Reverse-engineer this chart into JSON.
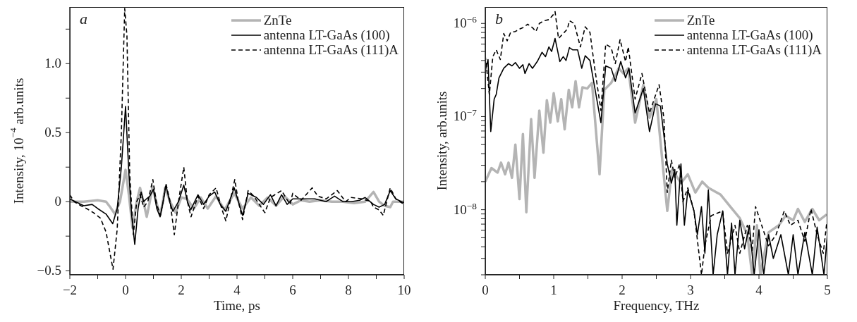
{
  "chart_data": [
    {
      "type": "line",
      "xlabel": "Time, ps",
      "ylabel": "Intensity, 10$^{−4}$ arb.units",
      "annotations": [
        "a"
      ],
      "legend": "top right",
      "xlim": [
        -2,
        10
      ],
      "xticks": [
        {
          "value": -2,
          "label": "−2"
        },
        {
          "value": -1,
          "label": null
        },
        0,
        {
          "value": 1,
          "label": null
        },
        2,
        {
          "value": 3,
          "label": null
        },
        4,
        {
          "value": 5,
          "label": null
        },
        6,
        {
          "value": 7,
          "label": null
        },
        8,
        {
          "value": 9,
          "label": null
        },
        10
      ],
      "ylim": [
        -0.53,
        1.41
      ],
      "yticks": [
        {
          "value": -0.5,
          "label": "−0.5"
        },
        {
          "value": -0.25,
          "label": null
        },
        0,
        {
          "value": 0.25,
          "label": null
        },
        0.5,
        {
          "value": 0.75,
          "label": null
        },
        {
          "value": 1,
          "label": "1.0"
        },
        {
          "value": 1.25,
          "label": null
        }
      ],
      "series": [
        {
          "name": "ZnTe",
          "color": "#b4b4b4",
          "line_style": "solid",
          "x": [
            -2,
            -1.5,
            -1,
            -0.7,
            -0.55,
            -0.38,
            -0.2,
            0,
            0.12,
            0.25,
            0.4,
            0.52,
            0.64,
            0.76,
            0.87,
            0.97,
            1.1,
            1.24,
            1.34,
            1.42,
            1.6,
            1.8,
            2,
            2.2,
            2.45,
            2.7,
            2.95,
            3.25,
            3.55,
            3.9,
            4.2,
            4.5,
            4.8,
            5.1,
            5.4,
            5.7,
            6,
            6.3,
            6.6,
            7,
            7.4,
            7.8,
            8.2,
            8.6,
            8.9,
            9.1,
            9.3,
            9.5,
            9.6,
            10
          ],
          "values": [
            0,
            0,
            0.01,
            0,
            -0.04,
            -0.09,
            0,
            0.23,
            0.05,
            -0.19,
            0,
            0.1,
            0,
            -0.11,
            0,
            0.11,
            0,
            -0.1,
            0,
            0.1,
            0,
            -0.08,
            0.03,
            0.02,
            -0.05,
            0.03,
            -0.05,
            0.04,
            -0.06,
            0.06,
            -0.05,
            0.03,
            -0.03,
            0.03,
            -0.03,
            0.04,
            -0.02,
            0.01,
            0,
            0.01,
            0,
            0,
            -0.01,
            0,
            0.07,
            0,
            -0.03,
            -0.04,
            0,
            0
          ]
        },
        {
          "name": "antenna LT-GaAs (100)",
          "color": "#000000",
          "line_style": "solid",
          "x": [
            -2,
            -1.8,
            -1.5,
            -1.2,
            -1,
            -0.7,
            -0.46,
            -0.3,
            -0.15,
            0,
            0.12,
            0.22,
            0.33,
            0.45,
            0.56,
            0.65,
            0.75,
            0.87,
            1,
            1.12,
            1.24,
            1.35,
            1.45,
            1.58,
            1.7,
            1.9,
            2.09,
            2.22,
            2.34,
            2.6,
            2.8,
            3,
            3.2,
            3.4,
            3.6,
            3.9,
            4.05,
            4.2,
            4.4,
            4.7,
            4.95,
            5.2,
            5.4,
            5.6,
            5.8,
            6,
            6.4,
            6.8,
            7.2,
            7.5,
            7.8,
            8.1,
            8.4,
            8.6,
            8.9,
            9.1,
            9.3,
            9.5,
            9.7,
            10
          ],
          "values": [
            0.02,
            0,
            -0.03,
            -0.02,
            -0.05,
            -0.09,
            -0.16,
            -0.05,
            0.25,
            0.69,
            0.2,
            -0.1,
            -0.31,
            -0.05,
            0.07,
            0,
            0.02,
            0.04,
            0.09,
            -0.05,
            -0.11,
            0,
            0.12,
            0,
            -0.07,
            0,
            0.12,
            0,
            -0.06,
            0.05,
            -0.02,
            0.04,
            0.07,
            -0.02,
            -0.07,
            0.1,
            0,
            -0.1,
            0.06,
            0.03,
            -0.02,
            0.05,
            -0.03,
            0.05,
            -0.02,
            0.02,
            0.02,
            0.02,
            0,
            0.04,
            0,
            0,
            0.01,
            0.03,
            -0.02,
            -0.04,
            -0.02,
            0.08,
            0.02,
            -0.01
          ]
        },
        {
          "name": "antenna LT-GaAs (111)A",
          "color": "#000000",
          "line_style": "dashed",
          "x": [
            -2,
            -1.85,
            -1.6,
            -1.4,
            -1.15,
            -0.9,
            -0.7,
            -0.45,
            -0.3,
            -0.15,
            -0.03,
            0.05,
            0.15,
            0.28,
            0.4,
            0.52,
            0.65,
            0.8,
            0.98,
            1.12,
            1.25,
            1.35,
            1.45,
            1.6,
            1.75,
            1.9,
            2.09,
            2.22,
            2.35,
            2.6,
            2.8,
            3,
            3.25,
            3.45,
            3.6,
            3.92,
            4.05,
            4.2,
            4.4,
            4.6,
            5,
            5.2,
            5.6,
            5.9,
            6,
            6.3,
            6.7,
            6.9,
            7.2,
            7.6,
            7.9,
            8.1,
            8.5,
            8.8,
            8.9,
            9.1,
            9.25,
            9.5,
            9.7,
            10
          ],
          "values": [
            0.05,
            0,
            -0.03,
            -0.05,
            -0.08,
            -0.12,
            -0.22,
            -0.49,
            -0.2,
            0.5,
            1.4,
            1.2,
            0.2,
            -0.24,
            0,
            0.05,
            -0.04,
            0,
            0.16,
            -0.02,
            -0.1,
            0,
            0.13,
            0,
            -0.24,
            0,
            0.25,
            0,
            -0.11,
            0.04,
            -0.05,
            0.05,
            0.1,
            -0.05,
            -0.14,
            0.16,
            0,
            -0.13,
            0.08,
            0.04,
            -0.08,
            0.03,
            0.08,
            -0.02,
            0.06,
            0.01,
            0.1,
            0.04,
            0.02,
            0.08,
            0,
            0.03,
            0.02,
            0,
            -0.04,
            -0.06,
            -0.1,
            0.1,
            0.02,
            -0.02
          ]
        }
      ]
    },
    {
      "type": "line",
      "xlabel": "Frequency, THz",
      "ylabel": "Intensity, arb.units",
      "annotations": [
        "b"
      ],
      "legend": "top right",
      "log": "y",
      "xlim": [
        0,
        5
      ],
      "xticks": [
        0,
        {
          "value": 0.5,
          "label": null
        },
        1,
        {
          "value": 1.5,
          "label": null
        },
        2,
        {
          "value": 2.5,
          "label": null
        },
        3,
        {
          "value": 3.5,
          "label": null
        },
        4,
        {
          "value": 4.5,
          "label": null
        },
        5
      ],
      "ylim": [
        2e-09,
        1.5e-06
      ],
      "yticks": [
        {
          "value": 2e-09,
          "label": null
        },
        {
          "value": 3e-09,
          "label": null
        },
        {
          "value": 4e-09,
          "label": null
        },
        {
          "value": 5e-09,
          "label": null
        },
        {
          "value": 6e-09,
          "label": null
        },
        {
          "value": 7e-09,
          "label": null
        },
        {
          "value": 8e-09,
          "label": null
        },
        {
          "value": 9e-09,
          "label": null
        },
        {
          "value": 1e-08,
          "label": "10$^{−8}$"
        },
        {
          "value": 2e-08,
          "label": null
        },
        {
          "value": 3e-08,
          "label": null
        },
        {
          "value": 4e-08,
          "label": null
        },
        {
          "value": 5e-08,
          "label": null
        },
        {
          "value": 6e-08,
          "label": null
        },
        {
          "value": 7e-08,
          "label": null
        },
        {
          "value": 8e-08,
          "label": null
        },
        {
          "value": 9e-08,
          "label": null
        },
        {
          "value": 1e-07,
          "label": "10$^{−7}$"
        },
        {
          "value": 2e-07,
          "label": null
        },
        {
          "value": 3e-07,
          "label": null
        },
        {
          "value": 4e-07,
          "label": null
        },
        {
          "value": 5e-07,
          "label": null
        },
        {
          "value": 6e-07,
          "label": null
        },
        {
          "value": 7e-07,
          "label": null
        },
        {
          "value": 8e-07,
          "label": null
        },
        {
          "value": 9e-07,
          "label": null
        },
        {
          "value": 1e-06,
          "label": "10$^{−6}$"
        }
      ],
      "series": [
        {
          "name": "ZnTe",
          "color": "#b4b4b4",
          "line_style": "solid",
          "x": [
            0,
            0.09,
            0.18,
            0.23,
            0.29,
            0.34,
            0.39,
            0.44,
            0.5,
            0.55,
            0.6,
            0.67,
            0.72,
            0.79,
            0.85,
            0.9,
            0.95,
            1,
            1.06,
            1.11,
            1.16,
            1.22,
            1.27,
            1.32,
            1.37,
            1.42,
            1.49,
            1.56,
            1.67,
            1.74,
            1.84,
            1.95,
            2.02,
            2.09,
            2.19,
            2.31,
            2.4,
            2.5,
            2.66,
            2.73,
            2.86,
            2.96,
            3.07,
            3.17,
            3.26,
            3.44,
            3.58,
            3.72,
            3.83,
            3.9,
            3.97,
            4.02,
            4.14,
            4.29,
            4.39,
            4.5,
            4.57,
            4.67,
            4.78,
            4.88,
            4.99
          ],
          "values": [
            2e-08,
            2.8e-08,
            2.5e-08,
            3.2e-08,
            2.4e-08,
            3.2e-08,
            2.2e-08,
            5e-08,
            1.3e-08,
            6.5e-08,
            9.4e-09,
            9.4e-08,
            2.2e-08,
            1.16e-07,
            4.1e-08,
            1.5e-07,
            8.6e-08,
            1.78e-07,
            8.9e-08,
            1.54e-07,
            7.3e-08,
            1.94e-07,
            1.26e-07,
            2.4e-07,
            1.26e-07,
            2.06e-07,
            2e-07,
            2.3e-07,
            2.4e-08,
            1.94e-07,
            2.3e-07,
            3.3e-07,
            2.9e-07,
            3.3e-07,
            8.6e-08,
            2.2e-07,
            9.7e-08,
            1.54e-07,
            9.7e-09,
            2.7e-08,
            1.93e-08,
            2.4e-08,
            1.53e-08,
            2e-08,
            1.72e-08,
            1.45e-08,
            1.08e-08,
            8.1e-09,
            5.4e-09,
            2e-09,
            6.8e-09,
            2e-09,
            5.7e-09,
            6.8e-09,
            8.6e-09,
            7.7e-09,
            1.02e-08,
            7.4e-09,
            1.02e-08,
            7.7e-09,
            8.9e-09
          ]
        },
        {
          "name": "antenna LT-GaAs (100)",
          "color": "#000000",
          "line_style": "solid",
          "x": [
            0,
            0.04,
            0.08,
            0.13,
            0.16,
            0.2,
            0.27,
            0.34,
            0.39,
            0.44,
            0.5,
            0.55,
            0.58,
            0.64,
            0.69,
            0.76,
            0.83,
            0.88,
            0.93,
            0.97,
            1.02,
            1.09,
            1.14,
            1.18,
            1.23,
            1.28,
            1.35,
            1.41,
            1.46,
            1.53,
            1.69,
            1.76,
            1.84,
            1.9,
            1.98,
            2.05,
            2.1,
            2.19,
            2.31,
            2.4,
            2.49,
            2.56,
            2.66,
            2.72,
            2.77,
            2.8,
            2.86,
            2.91,
            2.96,
            3.05,
            3.1,
            3.16,
            3.21,
            3.26,
            3.33,
            3.39,
            3.47,
            3.54,
            3.6,
            3.65,
            3.72,
            3.79,
            3.86,
            3.93,
            4,
            4.07,
            4.14,
            4.21,
            4.32,
            4.43,
            4.5,
            4.57,
            4.67,
            4.78,
            4.85,
            4.95,
            5
          ],
          "values": [
            3.1e-07,
            4.1e-07,
            6.9e-08,
            1.54e-07,
            1.73e-07,
            2.6e-07,
            3.3e-07,
            3.7e-07,
            3.5e-07,
            3.8e-07,
            3.3e-07,
            3.6e-07,
            2.9e-07,
            3.7e-07,
            3.3e-07,
            3.9e-07,
            4.9e-07,
            4.4e-07,
            5.6e-07,
            5e-07,
            6.9e-07,
            3.9e-07,
            4.4e-07,
            4e-07,
            5.5e-07,
            5.2e-07,
            5.2e-07,
            3.3e-07,
            4.5e-07,
            4e-07,
            8.6e-08,
            3.5e-07,
            3.3e-07,
            2.4e-07,
            3.9e-07,
            2.6e-07,
            3.3e-07,
            1.09e-07,
            2e-07,
            6.9e-08,
            1.37e-07,
            1.3e-07,
            3.1e-08,
            1.93e-08,
            2.7e-08,
            6.8e-09,
            3.1e-08,
            6.8e-09,
            1.63e-08,
            9.7e-09,
            5.4e-09,
            1.08e-08,
            3.4e-09,
            1.63e-08,
            2e-09,
            5.4e-09,
            9.7e-09,
            2e-09,
            7.2e-09,
            2e-09,
            7.7e-09,
            3.8e-09,
            6.8e-09,
            2e-09,
            6.1e-09,
            2e-09,
            5.4e-09,
            3e-09,
            5.4e-09,
            2e-09,
            5.4e-09,
            2e-09,
            5.7e-09,
            2e-09,
            6.5e-09,
            2e-09,
            5.4e-09
          ]
        },
        {
          "name": "antenna LT-GaAs (111)A",
          "color": "#000000",
          "line_style": "dashed",
          "x": [
            0,
            0.06,
            0.11,
            0.16,
            0.22,
            0.27,
            0.32,
            0.37,
            0.44,
            0.5,
            0.55,
            0.62,
            0.69,
            0.74,
            0.79,
            0.86,
            0.93,
            0.99,
            1.02,
            1.07,
            1.14,
            1.2,
            1.23,
            1.3,
            1.39,
            1.46,
            1.53,
            1.6,
            1.69,
            1.76,
            1.84,
            1.9,
            1.97,
            2.05,
            2.09,
            2.19,
            2.29,
            2.4,
            2.54,
            2.61,
            2.66,
            2.72,
            2.77,
            2.84,
            2.89,
            2.96,
            3.05,
            3.16,
            3.21,
            3.3,
            3.47,
            3.54,
            3.65,
            3.72,
            3.83,
            3.9,
            3.95,
            4.04,
            4.14,
            4.25,
            4.37,
            4.46,
            4.57,
            4.67,
            4.76,
            4.85,
            4.94,
            4.99
          ],
          "values": [
            4.5e-07,
            1.73e-07,
            4.4e-07,
            5.2e-07,
            4.1e-07,
            7.8e-07,
            6.5e-07,
            8e-07,
            8.2e-07,
            8.7e-07,
            9e-07,
            9.8e-07,
            9e-07,
            8.2e-07,
            1e-06,
            1.07e-06,
            1.1e-06,
            1.23e-06,
            1.34e-06,
            6.9e-07,
            7.8e-07,
            8.7e-07,
            1.07e-06,
            1e-06,
            5.6e-07,
            9.2e-07,
            8e-07,
            3.3e-07,
            1.16e-07,
            6e-07,
            5.5e-07,
            3.7e-07,
            6.7e-07,
            3.9e-07,
            5.6e-07,
            1.54e-07,
            2.9e-07,
            1.09e-07,
            2.2e-07,
            9.7e-08,
            1.53e-08,
            3.4e-08,
            2.2e-08,
            3.1e-08,
            1.22e-08,
            1.72e-08,
            9.7e-09,
            2e-09,
            4.1e-09,
            8.6e-09,
            9.7e-09,
            3.4e-09,
            6.8e-09,
            3.4e-09,
            6.8e-09,
            3.6e-09,
            1.08e-08,
            6.8e-09,
            4.1e-09,
            5.4e-09,
            9.7e-09,
            6.8e-09,
            7.7e-09,
            4.6e-09,
            1.02e-08,
            5.4e-09,
            3.4e-09,
            7.2e-09
          ]
        }
      ]
    }
  ]
}
